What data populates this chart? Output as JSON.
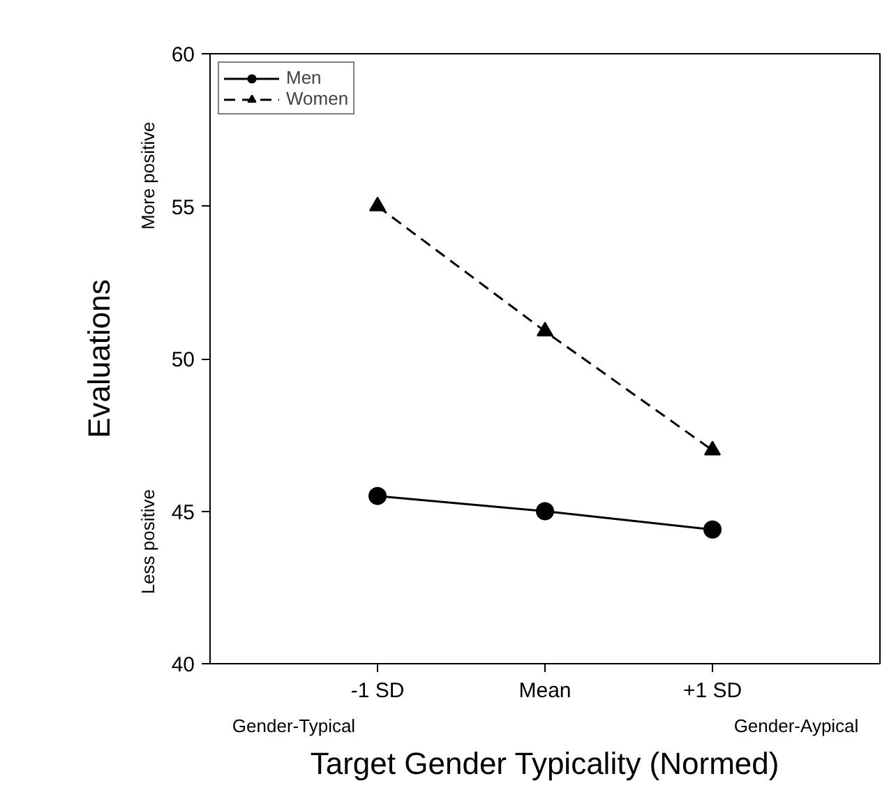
{
  "chart_data": {
    "type": "line",
    "xlabel": "Target Gender Typicality (Normed)",
    "ylabel": "Evaluations",
    "categories": [
      "-1 SD",
      "Mean",
      "+1 SD"
    ],
    "series": [
      {
        "name": "Men",
        "color": "#000000",
        "values": [
          45.5,
          45.0,
          44.4
        ],
        "marker": "circle",
        "line_style": "solid"
      },
      {
        "name": "Women",
        "color": "#000000",
        "values": [
          55.0,
          50.9,
          47.0
        ],
        "marker": "triangle",
        "line_style": "dashed"
      }
    ],
    "ylim": [
      40,
      60
    ],
    "yticks": [
      40,
      45,
      50,
      55,
      60
    ],
    "grid": false,
    "legend": "top left",
    "annotations": [
      "More positive",
      "Less positive",
      "Gender-Typical",
      "Gender-Aypical"
    ]
  }
}
